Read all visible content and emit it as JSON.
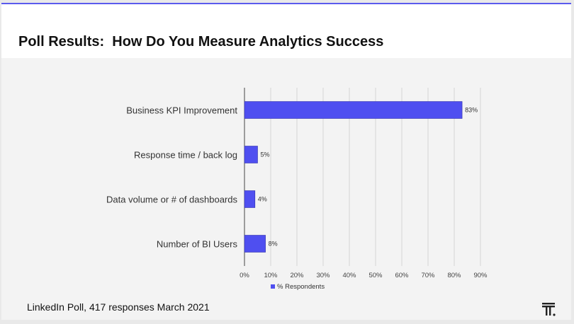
{
  "slide": {
    "title": "Poll Results:  How Do You Measure Analytics Success",
    "footer": "LinkedIn Poll, 417 responses March 2021"
  },
  "chart_data": {
    "type": "bar",
    "orientation": "horizontal",
    "categories": [
      "Business KPI Improvement",
      "Response time / back log",
      "Data volume or # of dashboards",
      "Number of BI Users"
    ],
    "series": [
      {
        "name": "% Respondents",
        "values": [
          83,
          5,
          4,
          8
        ],
        "color": "#4f4ff0"
      }
    ],
    "data_labels": [
      "83%",
      "5%",
      "4%",
      "8%"
    ],
    "xlim": [
      0,
      90
    ],
    "x_ticks": [
      0,
      10,
      20,
      30,
      40,
      50,
      60,
      70,
      80,
      90
    ],
    "x_tick_labels": [
      "0%",
      "10%",
      "20%",
      "30%",
      "40%",
      "50%",
      "60%",
      "70%",
      "80%",
      "90%"
    ],
    "grid": true,
    "legend_position": "bottom"
  },
  "logo_icon": "stacked-T-icon"
}
